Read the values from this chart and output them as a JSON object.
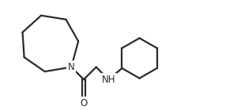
{
  "bg_color": "#ffffff",
  "line_color": "#2a2a2a",
  "atom_color": "#2a2a2a",
  "label_N": "N",
  "label_O": "O",
  "label_NH": "NH",
  "line_width": 1.6,
  "font_size": 8.5,
  "figsize": [
    3.0,
    1.4
  ],
  "dpi": 100,
  "xlim": [
    0.0,
    10.0
  ],
  "ylim": [
    0.5,
    5.2
  ]
}
